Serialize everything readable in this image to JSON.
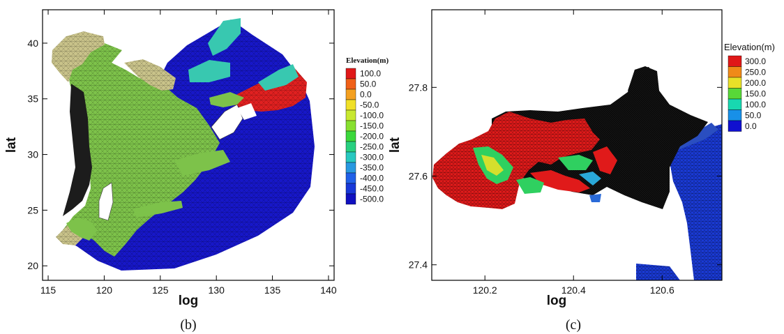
{
  "chart_data": [
    {
      "type": "heatmap",
      "caption": "(b)",
      "xlabel": "log",
      "ylabel": "lat",
      "xlim": [
        114.5,
        140.5
      ],
      "ylim": [
        18.7,
        43.0
      ],
      "xticks": [
        115,
        120,
        125,
        130,
        135,
        140
      ],
      "yticks": [
        20,
        25,
        30,
        35,
        40
      ],
      "grid": false,
      "colors": {
        "ocean": "#1717c8",
        "shelf": "#7dc24a",
        "coast": "#c9c38a",
        "high": "#e02020",
        "cyan": "#38c8b0"
      },
      "legend": {
        "title": "Elevation(m)",
        "placement": "right",
        "levels": [
          "100.0",
          "50.0",
          "0.0",
          "-50.0",
          "-100.0",
          "-150.0",
          "-200.0",
          "-250.0",
          "-300.0",
          "-350.0",
          "-400.0",
          "-450.0",
          "-500.0"
        ],
        "colors": [
          "#e01818",
          "#f06018",
          "#f4a020",
          "#f0e028",
          "#c8e830",
          "#88e030",
          "#3cd83c",
          "#28d080",
          "#28c8c0",
          "#2898e0",
          "#2060e8",
          "#1838d8",
          "#1010c0"
        ]
      }
    },
    {
      "type": "heatmap",
      "caption": "(c)",
      "xlabel": "log",
      "ylabel": "lat",
      "xlim": [
        120.08,
        120.735
      ],
      "ylim": [
        27.365,
        27.975
      ],
      "xticks": [
        120.2,
        120.4,
        120.6
      ],
      "xticklabels": [
        "120.2",
        "120.4",
        "120.6"
      ],
      "yticks": [
        27.4,
        27.6,
        27.8
      ],
      "yticklabels": [
        "27.4",
        "27.6",
        "27.8"
      ],
      "grid": false,
      "colors": {
        "low": "#1a3ad6",
        "high": "#e01a1a",
        "mesh": "#000000",
        "mid": "#2fd060"
      },
      "legend": {
        "title": "Elevation(m)",
        "placement": "right",
        "levels": [
          "300.0",
          "250.0",
          "200.0",
          "150.0",
          "100.0",
          "50.0",
          "0.0"
        ],
        "colors": [
          "#e01818",
          "#f08a18",
          "#e8e028",
          "#58d838",
          "#18d8b0",
          "#1890e8",
          "#1010d0"
        ]
      }
    }
  ]
}
